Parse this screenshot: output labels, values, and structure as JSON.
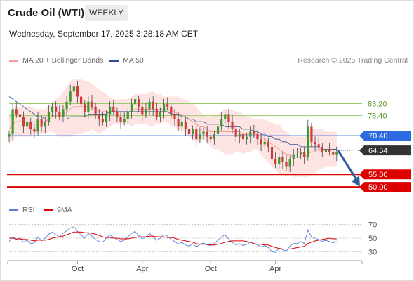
{
  "header": {
    "title": "Crude Oil (WTI)",
    "period": "WEEKLY",
    "date": "Wednesday, September 17, 2025 3:28:18 AM CET"
  },
  "legend": {
    "items": [
      {
        "label": "MA 20 + Bollinger Bands",
        "color": "#f49b9b"
      },
      {
        "label": "MA 50",
        "color": "#2f4f8f"
      }
    ],
    "credit": "Research © 2025 Trading Central"
  },
  "levels": [
    {
      "value": 83.2,
      "label": "83.20",
      "kind": "resistance",
      "color": "#99cc66"
    },
    {
      "value": 78.4,
      "label": "78.40",
      "kind": "resistance",
      "color": "#99cc66"
    },
    {
      "value": 70.4,
      "label": "70.40",
      "kind": "pivot",
      "color": "#2f6be0"
    },
    {
      "value": 64.54,
      "label": "64.54",
      "kind": "last",
      "color": "#333333"
    },
    {
      "value": 55.0,
      "label": "55.00",
      "kind": "support",
      "color": "#dd0000"
    },
    {
      "value": 50.0,
      "label": "50.00",
      "kind": "support",
      "color": "#dd0000"
    }
  ],
  "rsi": {
    "legend": [
      {
        "label": "RSI",
        "color": "#5b7fd6"
      },
      {
        "label": "9MA",
        "color": "#dd0000"
      }
    ],
    "ticks": [
      "70",
      "50",
      "30"
    ]
  },
  "chart_data": {
    "type": "line",
    "title": "Crude Oil (WTI)",
    "xlabel": "",
    "ylabel": "",
    "x_ticks": [
      "Oct",
      "Apr",
      "Oct",
      "Apr"
    ],
    "price_series": [
      {
        "name": "Price (weekly close)",
        "values": [
          71,
          81,
          79,
          78,
          74,
          76,
          73,
          72,
          77,
          74,
          76,
          80,
          82,
          80,
          78,
          81,
          84,
          88,
          90,
          86,
          83,
          80,
          84,
          82,
          79,
          77,
          76,
          79,
          82,
          80,
          78,
          76,
          77,
          80,
          83,
          85,
          82,
          79,
          81,
          84,
          81,
          78,
          80,
          83,
          82,
          79,
          77,
          74,
          76,
          73,
          71,
          73,
          69,
          71,
          72,
          70,
          69,
          71,
          74,
          77,
          79,
          76,
          73,
          70,
          71,
          69,
          70,
          72,
          71,
          69,
          67,
          68,
          66,
          61,
          59,
          62,
          60,
          58,
          61,
          63,
          63,
          64,
          62,
          74,
          68,
          67,
          66,
          64,
          65,
          64,
          63,
          64
        ]
      },
      {
        "name": "MA 20",
        "values": [
          73,
          75,
          76,
          76,
          76,
          76,
          76,
          76,
          76,
          76,
          76,
          77,
          78,
          78,
          78,
          79,
          80,
          81,
          82,
          82,
          82,
          82,
          82,
          82,
          81,
          80,
          80,
          80,
          80,
          80,
          80,
          80,
          80,
          80,
          80,
          81,
          81,
          81,
          81,
          81,
          81,
          81,
          81,
          81,
          81,
          80,
          80,
          79,
          79,
          78,
          77,
          76,
          75,
          74,
          74,
          73,
          72,
          72,
          72,
          72,
          72,
          72,
          72,
          72,
          72,
          71,
          71,
          71,
          71,
          71,
          70,
          69,
          68,
          67,
          66,
          65,
          64,
          63,
          63,
          62,
          62,
          62,
          62,
          63,
          64,
          64,
          65,
          65,
          65,
          65,
          65,
          65
        ]
      },
      {
        "name": "MA 50",
        "values": [
          86,
          85,
          84,
          83,
          82,
          81,
          80,
          79,
          78,
          78,
          77,
          77,
          77,
          77,
          77,
          77,
          77,
          78,
          78,
          78,
          78,
          78,
          79,
          79,
          79,
          79,
          79,
          79,
          80,
          80,
          80,
          80,
          80,
          80,
          80,
          80,
          80,
          80,
          80,
          80,
          80,
          80,
          80,
          80,
          80,
          79,
          79,
          79,
          78,
          78,
          77,
          77,
          76,
          76,
          76,
          75,
          75,
          75,
          75,
          75,
          74,
          74,
          74,
          74,
          74,
          73,
          73,
          73,
          72,
          72,
          71,
          71,
          70,
          70,
          69,
          69,
          68,
          68,
          67,
          67,
          67,
          66,
          66,
          66,
          66,
          66,
          66,
          65,
          65,
          65,
          65,
          65
        ]
      }
    ],
    "bollinger": {
      "upper": [
        79,
        81,
        82,
        82,
        82,
        82,
        82,
        81,
        81,
        81,
        81,
        82,
        84,
        85,
        86,
        88,
        90,
        92,
        93,
        93,
        93,
        92,
        92,
        91,
        90,
        89,
        88,
        87,
        86,
        85,
        85,
        85,
        85,
        85,
        86,
        87,
        87,
        87,
        87,
        88,
        88,
        87,
        87,
        86,
        86,
        86,
        86,
        86,
        85,
        85,
        84,
        83,
        82,
        80,
        79,
        78,
        78,
        79,
        79,
        80,
        81,
        81,
        81,
        80,
        80,
        79,
        78,
        78,
        77,
        77,
        77,
        77,
        76,
        76,
        75,
        75,
        73,
        72,
        71,
        70,
        70,
        70,
        70,
        72,
        73,
        73,
        73,
        73,
        72,
        72,
        72,
        72
      ],
      "lower": [
        67,
        69,
        70,
        70,
        70,
        70,
        70,
        71,
        71,
        71,
        71,
        72,
        72,
        71,
        70,
        70,
        70,
        70,
        71,
        71,
        71,
        72,
        72,
        73,
        72,
        71,
        72,
        73,
        74,
        75,
        75,
        75,
        75,
        75,
        74,
        75,
        75,
        75,
        75,
        74,
        74,
        75,
        75,
        76,
        76,
        74,
        74,
        72,
        73,
        71,
        70,
        69,
        68,
        68,
        69,
        68,
        66,
        65,
        65,
        64,
        63,
        63,
        63,
        64,
        64,
        63,
        64,
        64,
        65,
        65,
        63,
        61,
        60,
        58,
        57,
        55,
        55,
        54,
        55,
        54,
        54,
        54,
        54,
        54,
        55,
        55,
        57,
        57,
        58,
        58,
        58,
        58
      ]
    },
    "rsi_series": [
      {
        "name": "RSI",
        "values": [
          45,
          52,
          48,
          50,
          44,
          47,
          42,
          43,
          52,
          46,
          50,
          56,
          59,
          55,
          52,
          57,
          61,
          65,
          67,
          60,
          55,
          50,
          57,
          53,
          48,
          45,
          44,
          50,
          55,
          51,
          48,
          45,
          47,
          52,
          57,
          60,
          54,
          49,
          52,
          57,
          52,
          47,
          50,
          55,
          53,
          48,
          45,
          41,
          44,
          40,
          38,
          42,
          37,
          41,
          43,
          40,
          39,
          42,
          47,
          52,
          55,
          49,
          44,
          40,
          42,
          39,
          41,
          44,
          42,
          40,
          37,
          39,
          36,
          30,
          29,
          35,
          33,
          31,
          38,
          42,
          42,
          45,
          42,
          62,
          52,
          50,
          48,
          45,
          47,
          45,
          43,
          45
        ]
      },
      {
        "name": "9MA",
        "values": [
          50,
          50,
          49,
          49,
          48,
          48,
          47,
          46,
          47,
          47,
          47,
          48,
          50,
          51,
          52,
          53,
          55,
          57,
          59,
          59,
          59,
          58,
          58,
          57,
          56,
          54,
          52,
          51,
          51,
          50,
          50,
          49,
          49,
          49,
          50,
          51,
          52,
          52,
          52,
          53,
          53,
          52,
          52,
          52,
          51,
          51,
          50,
          48,
          47,
          46,
          45,
          44,
          42,
          41,
          41,
          41,
          40,
          40,
          41,
          42,
          44,
          45,
          46,
          46,
          46,
          46,
          45,
          44,
          42,
          41,
          41,
          40,
          40,
          38,
          36,
          35,
          34,
          34,
          34,
          35,
          36,
          37,
          38,
          42,
          44,
          46,
          47,
          48,
          49,
          50,
          49,
          49
        ]
      }
    ],
    "rsi_ylim": [
      20,
      80
    ],
    "projection": {
      "from": 64.54,
      "to": 50.0
    },
    "price_ylim": [
      47.5,
      96.5
    ]
  }
}
